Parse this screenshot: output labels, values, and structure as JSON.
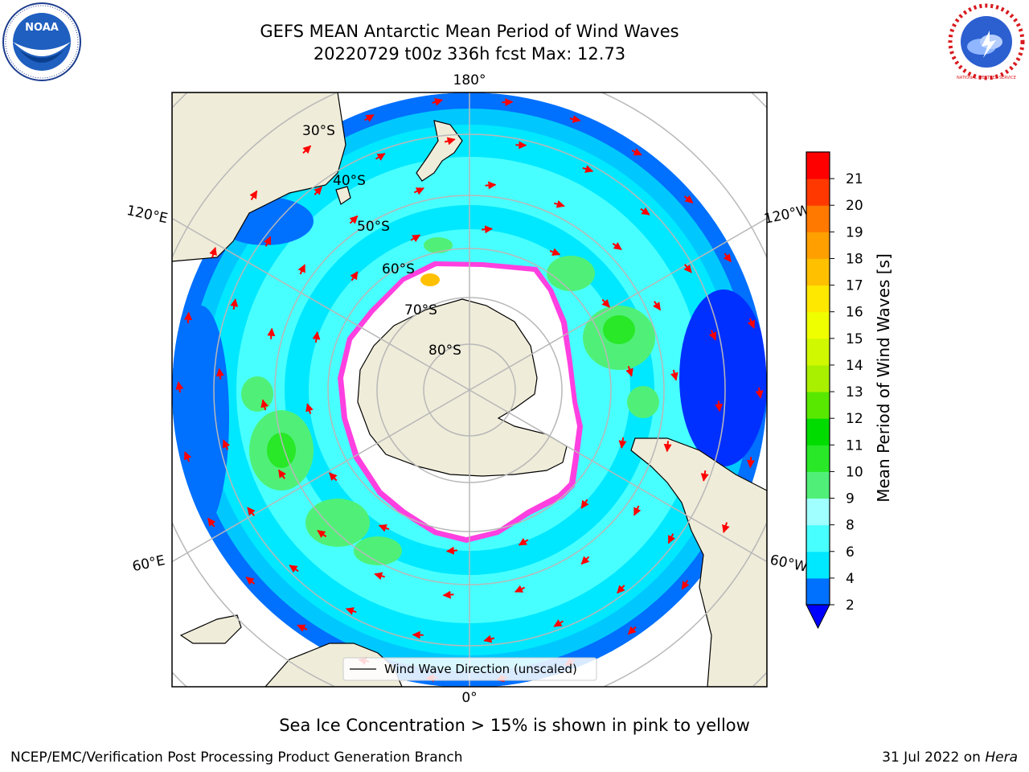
{
  "header": {
    "title_line1": "GEFS MEAN Antarctic Mean Period of Wind Waves",
    "title_line2": "20220729 t00z 336h fcst   Max: 12.73"
  },
  "logos": {
    "noaa_text": "NOAA",
    "nws_text": "NATIONAL WEATHER SERVICE"
  },
  "map": {
    "projection": "south-polar-stereographic",
    "longitude_labels": [
      "180°",
      "120°E",
      "120°W",
      "60°E",
      "60°W",
      "0°"
    ],
    "latitude_labels": [
      "30°S",
      "40°S",
      "50°S",
      "60°S",
      "70°S",
      "80°S"
    ],
    "legend_label": "Wind Wave Direction (unscaled)",
    "arrow_color": "#ff0000",
    "land_color": "#efecd9",
    "sea_ice_note": "Sea Ice Concentration > 15% is shown in pink to yellow"
  },
  "colorbar": {
    "label": "Mean Period of Wind Waves [s]",
    "ticks": [
      "2",
      "4",
      "6",
      "8",
      "9",
      "10",
      "11",
      "12",
      "13",
      "14",
      "15",
      "16",
      "17",
      "18",
      "19",
      "20",
      "21"
    ],
    "colors": [
      "#0070ff",
      "#00e8ff",
      "#48ffff",
      "#a0ffff",
      "#50f078",
      "#28e828",
      "#00dc00",
      "#58e800",
      "#a8f000",
      "#d0f800",
      "#f0ff00",
      "#ffe800",
      "#ffc000",
      "#ffa000",
      "#ff7800",
      "#ff3800",
      "#ff0000"
    ],
    "extend_color": "#0000ff",
    "max_value": "12.73"
  },
  "footer": {
    "credit": "NCEP/EMC/Verification Post Processing Product Generation Branch",
    "date": "31 Jul 2022 on ",
    "machine": "Hera"
  }
}
